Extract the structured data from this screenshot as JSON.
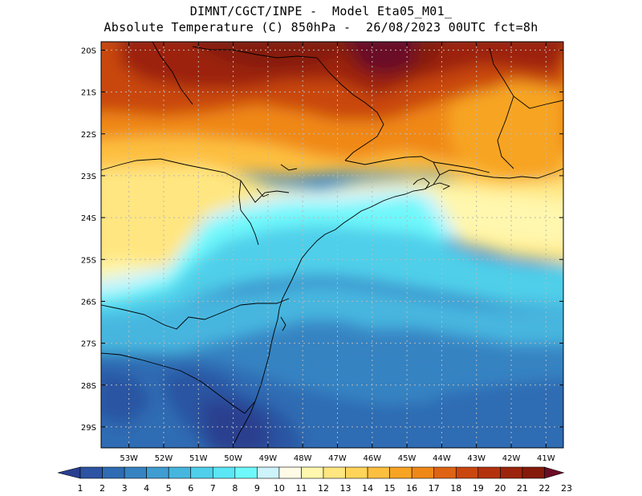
{
  "title": {
    "line1": "DIMNT/CGCT/INPE -  Model Eta05_M01_",
    "line2": "Absolute Temperature (C) 850hPa -  26/08/2023 00UTC fct=8h"
  },
  "map": {
    "lat_labels": [
      "20S",
      "21S",
      "22S",
      "23S",
      "24S",
      "25S",
      "26S",
      "27S",
      "28S",
      "29S"
    ],
    "lon_labels": [
      "53W",
      "52W",
      "51W",
      "50W",
      "49W",
      "48W",
      "47W",
      "46W",
      "45W",
      "44W",
      "43W",
      "42W",
      "41W"
    ],
    "lat_values": [
      -20,
      -21,
      -22,
      -23,
      -24,
      -25,
      -26,
      -27,
      -28,
      -29
    ],
    "lon_values": [
      -53,
      -52,
      -51,
      -50,
      -49,
      -48,
      -47,
      -46,
      -45,
      -44,
      -43,
      -42,
      -41
    ],
    "lat_range": [
      -29.5,
      -19.8
    ],
    "lon_range": [
      -53.8,
      -40.5
    ]
  },
  "colorbar": {
    "labels": [
      "1",
      "2",
      "3",
      "4",
      "5",
      "6",
      "7",
      "8",
      "9",
      "10",
      "11",
      "12",
      "13",
      "14",
      "15",
      "16",
      "17",
      "18",
      "19",
      "20",
      "21",
      "22",
      "23"
    ],
    "colors": [
      "#2a3f8f",
      "#2c54a2",
      "#2f6cb3",
      "#3683c2",
      "#3f9dd1",
      "#46b6df",
      "#4fcfea",
      "#5ae6f5",
      "#6ef8fb",
      "#cdf3fb",
      "#fffbe7",
      "#fff7ad",
      "#ffe680",
      "#ffd459",
      "#fdbf3f",
      "#f7a424",
      "#f08818",
      "#de6414",
      "#c9460f",
      "#b3320d",
      "#9c240c",
      "#851a0b",
      "#6a0c26"
    ]
  }
}
